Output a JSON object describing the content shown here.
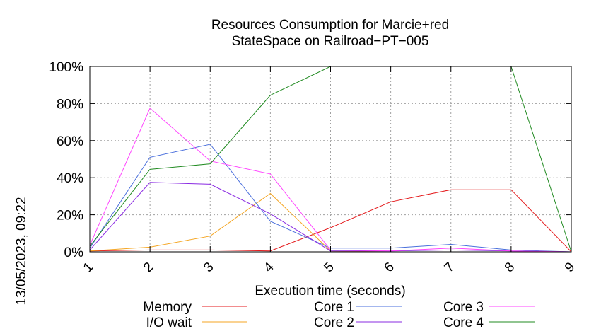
{
  "chart_data": {
    "type": "line",
    "title": [
      "Resources Consumption for Marcie+red",
      "StateSpace on Railroad−PT−005"
    ],
    "xlabel": "Execution time (seconds)",
    "ylabel": "",
    "side_text": "13/05/2023, 09:22",
    "x": [
      1,
      2,
      3,
      4,
      5,
      6,
      7,
      8,
      9
    ],
    "xlim": [
      1,
      9
    ],
    "ylim": [
      0,
      100
    ],
    "y_ticks": [
      0,
      20,
      40,
      60,
      80,
      100
    ],
    "y_tick_labels": [
      "0%",
      "20%",
      "40%",
      "60%",
      "80%",
      "100%"
    ],
    "x_tick_labels": [
      "1",
      "2",
      "3",
      "4",
      "5",
      "6",
      "7",
      "8",
      "9"
    ],
    "grid": true,
    "legend_position": "bottom",
    "series": [
      {
        "name": "Memory",
        "color": "#e41a1c",
        "values": [
          0.5,
          1,
          1,
          0.5,
          13,
          27,
          33.5,
          33.5,
          0
        ]
      },
      {
        "name": "I/O wait",
        "color": "#f5a623",
        "values": [
          0.5,
          2.5,
          8.5,
          31.5,
          0.5,
          0,
          0,
          0,
          0
        ]
      },
      {
        "name": "Core 1",
        "color": "#4a6fdc",
        "values": [
          2,
          51,
          58,
          16.5,
          2,
          2,
          4,
          1,
          0
        ]
      },
      {
        "name": "Core 2",
        "color": "#8a2be2",
        "values": [
          1,
          37.5,
          36.5,
          20.5,
          0.5,
          0.5,
          1,
          0.5,
          0
        ]
      },
      {
        "name": "Core 3",
        "color": "#ff44ff",
        "values": [
          3.5,
          77.5,
          49,
          42,
          1,
          0.5,
          2,
          0.5,
          0
        ]
      },
      {
        "name": "Core 4",
        "color": "#228b22",
        "values": [
          3,
          44.5,
          47.5,
          84.5,
          100,
          100,
          100,
          100,
          0
        ]
      }
    ]
  }
}
